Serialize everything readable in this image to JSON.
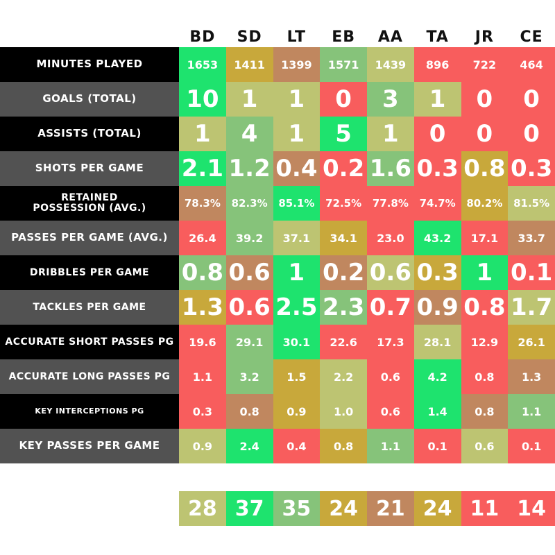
{
  "palette": {
    "green": "#1ee36e",
    "light_green": "#86c37a",
    "olive": "#bdc472",
    "gold": "#c8a83b",
    "brown": "#c0875f",
    "red": "#f85d5d",
    "label_black": "#000000",
    "label_gray": "#525252"
  },
  "chart_data": {
    "type": "table",
    "columns": [
      "BD",
      "SD",
      "LT",
      "EB",
      "AA",
      "TA",
      "JR",
      "CE"
    ],
    "rows": [
      {
        "label_lines": [
          "Minutes Played"
        ],
        "label_bg": "black",
        "label_size": 15,
        "value_style": "small",
        "values": [
          "1653",
          "1411",
          "1399",
          "1571",
          "1439",
          "896",
          "722",
          "464"
        ],
        "colors": [
          "green",
          "gold",
          "brown",
          "light_green",
          "olive",
          "red",
          "red",
          "red"
        ]
      },
      {
        "label_lines": [
          "Goals (Total)"
        ],
        "label_bg": "gray",
        "label_size": 15,
        "value_style": "big",
        "values": [
          "10",
          "1",
          "1",
          "0",
          "3",
          "1",
          "0",
          "0"
        ],
        "colors": [
          "green",
          "olive",
          "olive",
          "red",
          "light_green",
          "olive",
          "red",
          "red"
        ]
      },
      {
        "label_lines": [
          "Assists (Total)"
        ],
        "label_bg": "black",
        "label_size": 15,
        "value_style": "big",
        "values": [
          "1",
          "4",
          "1",
          "5",
          "1",
          "0",
          "0",
          "0"
        ],
        "colors": [
          "olive",
          "light_green",
          "olive",
          "green",
          "olive",
          "red",
          "red",
          "red"
        ]
      },
      {
        "label_lines": [
          "Shots Per Game"
        ],
        "label_bg": "gray",
        "label_size": 15,
        "value_style": "big",
        "values": [
          "2.1",
          "1.2",
          "0.4",
          "0.2",
          "1.6",
          "0.3",
          "0.8",
          "0.3"
        ],
        "colors": [
          "green",
          "light_green",
          "brown",
          "red",
          "light_green",
          "red",
          "gold",
          "red"
        ]
      },
      {
        "label_lines": [
          "Retained",
          "Possession (Avg.)"
        ],
        "label_bg": "black",
        "label_size": 14,
        "value_style": "pct",
        "values": [
          "78.3%",
          "82.3%",
          "85.1%",
          "72.5%",
          "77.8%",
          "74.7%",
          "80.2%",
          "81.5%"
        ],
        "colors": [
          "brown",
          "light_green",
          "green",
          "red",
          "red",
          "red",
          "gold",
          "olive"
        ]
      },
      {
        "label_lines": [
          "Passes Per Game (Avg.)"
        ],
        "label_bg": "gray",
        "label_size": 15,
        "value_style": "small",
        "values": [
          "26.4",
          "39.2",
          "37.1",
          "34.1",
          "23.0",
          "43.2",
          "17.1",
          "33.7"
        ],
        "colors": [
          "red",
          "light_green",
          "olive",
          "gold",
          "red",
          "green",
          "red",
          "brown"
        ]
      },
      {
        "label_lines": [
          "Dribbles Per Game"
        ],
        "label_bg": "black",
        "label_size": 14,
        "value_style": "big",
        "values": [
          "0.8",
          "0.6",
          "1",
          "0.2",
          "0.6",
          "0.3",
          "1",
          "0.1"
        ],
        "colors": [
          "light_green",
          "brown",
          "green",
          "brown",
          "olive",
          "gold",
          "green",
          "red"
        ]
      },
      {
        "label_lines": [
          "Tackles Per Game"
        ],
        "label_bg": "gray",
        "label_size": 14,
        "value_style": "big",
        "values": [
          "1.3",
          "0.6",
          "2.5",
          "2.3",
          "0.7",
          "0.9",
          "0.8",
          "1.7"
        ],
        "colors": [
          "gold",
          "red",
          "green",
          "light_green",
          "red",
          "brown",
          "red",
          "olive"
        ]
      },
      {
        "label_lines": [
          "Accurate Short Passes PG"
        ],
        "label_bg": "black",
        "label_size": 14,
        "value_style": "small",
        "values": [
          "19.6",
          "29.1",
          "30.1",
          "22.6",
          "17.3",
          "28.1",
          "12.9",
          "26.1"
        ],
        "colors": [
          "red",
          "light_green",
          "green",
          "red",
          "red",
          "olive",
          "red",
          "gold"
        ]
      },
      {
        "label_lines": [
          "Accurate Long Passes PG"
        ],
        "label_bg": "gray",
        "label_size": 14,
        "value_style": "small",
        "values": [
          "1.1",
          "3.2",
          "1.5",
          "2.2",
          "0.6",
          "4.2",
          "0.8",
          "1.3"
        ],
        "colors": [
          "red",
          "light_green",
          "gold",
          "olive",
          "red",
          "green",
          "red",
          "brown"
        ]
      },
      {
        "label_lines": [
          "Key Interceptions PG"
        ],
        "label_bg": "black",
        "label_size": 11,
        "value_style": "small",
        "values": [
          "0.3",
          "0.8",
          "0.9",
          "1.0",
          "0.6",
          "1.4",
          "0.8",
          "1.1"
        ],
        "colors": [
          "red",
          "brown",
          "gold",
          "olive",
          "red",
          "green",
          "brown",
          "light_green"
        ]
      },
      {
        "label_lines": [
          "Key Passes Per Game"
        ],
        "label_bg": "gray",
        "label_size": 15,
        "value_style": "small",
        "values": [
          "0.9",
          "2.4",
          "0.4",
          "0.8",
          "1.1",
          "0.1",
          "0.6",
          "0.1"
        ],
        "colors": [
          "olive",
          "green",
          "red",
          "gold",
          "light_green",
          "red",
          "olive",
          "red"
        ]
      }
    ],
    "totals": {
      "values": [
        "28",
        "37",
        "35",
        "24",
        "21",
        "24",
        "11",
        "14"
      ],
      "colors": [
        "olive",
        "green",
        "light_green",
        "gold",
        "brown",
        "gold",
        "red",
        "red"
      ]
    }
  }
}
